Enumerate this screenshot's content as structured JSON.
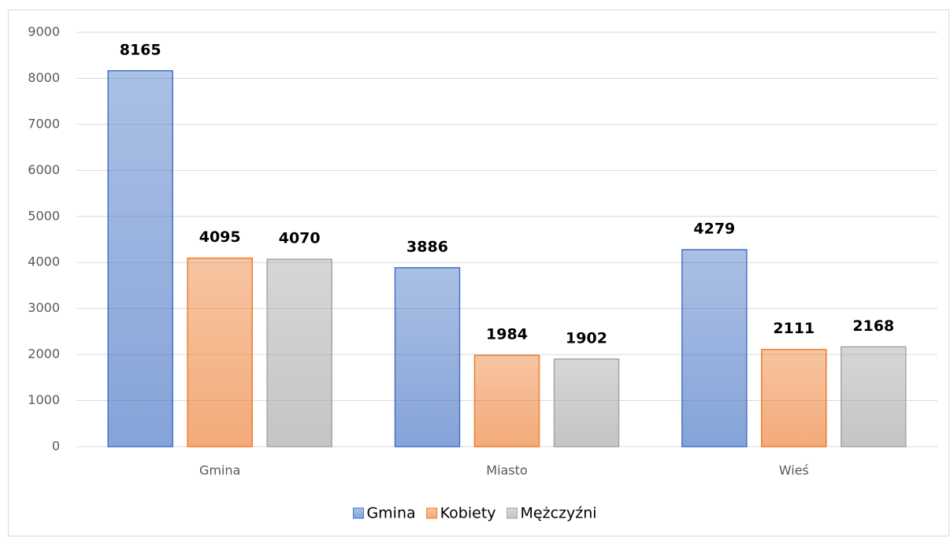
{
  "chart_data": {
    "type": "bar",
    "categories": [
      "Gmina",
      "Miasto",
      "Wieś"
    ],
    "series": [
      {
        "name": "Gmina",
        "color": "#4472c4",
        "values": [
          8165,
          3886,
          4279
        ]
      },
      {
        "name": "Kobiety",
        "color": "#ed7d31",
        "values": [
          4095,
          1984,
          2111
        ]
      },
      {
        "name": "Mężczyźni",
        "color": "#a5a5a5",
        "values": [
          4070,
          1902,
          2168
        ]
      }
    ],
    "ylim": [
      0,
      9000
    ],
    "yticks": [
      0,
      1000,
      2000,
      3000,
      4000,
      5000,
      6000,
      7000,
      8000,
      9000
    ],
    "grid": true,
    "legend": "bottom"
  }
}
